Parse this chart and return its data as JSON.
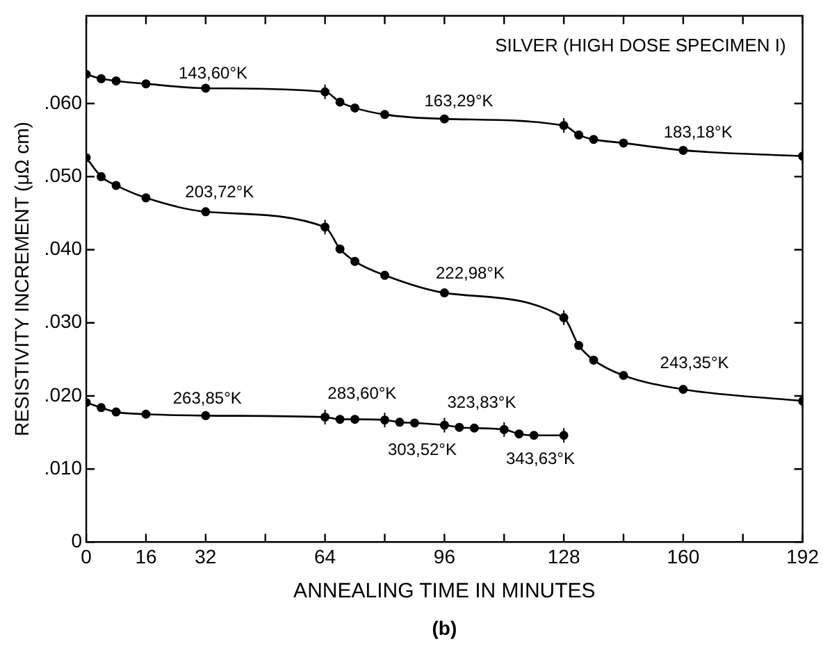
{
  "chart_data": {
    "type": "line",
    "xlabel": "ANNEALING TIME IN MINUTES",
    "ylabel": "RESISTIVITY INCREMENT (μΩ cm)",
    "xlim": [
      0,
      192
    ],
    "xticks": [
      0,
      16,
      32,
      {
        "value": 48,
        "label": null
      },
      64,
      {
        "value": 80,
        "label": null
      },
      96,
      {
        "value": 112,
        "label": null
      },
      128,
      {
        "value": 144,
        "label": null
      },
      160,
      {
        "value": 176,
        "label": null
      },
      192
    ],
    "ylim": [
      0,
      0.072
    ],
    "yticks": [
      0,
      {
        "value": 0.01,
        "label": ".010"
      },
      {
        "value": 0.02,
        "label": ".020"
      },
      {
        "value": 0.03,
        "label": ".030"
      },
      {
        "value": 0.04,
        "label": ".040"
      },
      {
        "value": 0.05,
        "label": ".050"
      },
      {
        "value": 0.06,
        "label": ".060"
      }
    ],
    "grid": false,
    "legend": false,
    "marker": "circle",
    "line_style": "solid",
    "series": [
      {
        "color": "#000000",
        "x": [
          0,
          4,
          8,
          16,
          32,
          64,
          68,
          72,
          80,
          96,
          128,
          132,
          136,
          144,
          160,
          192
        ],
        "values": [
          0.064,
          0.0634,
          0.0631,
          0.0627,
          0.0621,
          0.0616,
          0.0602,
          0.0594,
          0.0585,
          0.0579,
          0.057,
          0.0557,
          0.0551,
          0.0546,
          0.0536,
          0.0528
        ],
        "errors": [
          null,
          null,
          null,
          null,
          null,
          0.001,
          null,
          null,
          null,
          null,
          0.001,
          null,
          null,
          null,
          null,
          0.001
        ]
      },
      {
        "color": "#000000",
        "x": [
          0,
          4,
          8,
          16,
          32,
          64,
          68,
          72,
          80,
          96,
          128,
          132,
          136,
          144,
          160,
          192
        ],
        "values": [
          0.0526,
          0.05,
          0.0488,
          0.0471,
          0.0452,
          0.0431,
          0.0401,
          0.0384,
          0.0365,
          0.0341,
          0.0307,
          0.0269,
          0.0249,
          0.0228,
          0.0209,
          0.0193
        ],
        "errors": [
          null,
          null,
          null,
          null,
          null,
          0.001,
          null,
          null,
          null,
          null,
          0.001,
          null,
          null,
          null,
          null,
          0.001
        ]
      },
      {
        "color": "#000000",
        "x": [
          0,
          4,
          8,
          16,
          32,
          64,
          68,
          72,
          80,
          84,
          88,
          96,
          100,
          104,
          112,
          116,
          120,
          128
        ],
        "values": [
          0.0191,
          0.0184,
          0.0178,
          0.0175,
          0.0173,
          0.0171,
          0.0168,
          0.0168,
          0.0167,
          0.0164,
          0.0163,
          0.016,
          0.0157,
          0.0156,
          0.0154,
          0.0148,
          0.0146,
          0.0146
        ],
        "errors": [
          null,
          null,
          null,
          null,
          null,
          0.001,
          null,
          null,
          0.001,
          null,
          null,
          0.001,
          null,
          null,
          0.001,
          null,
          null,
          0.001
        ]
      }
    ],
    "annotations": [
      "SILVER (HIGH DOSE SPECIMEN I)",
      "(b)",
      "143,60°K",
      "163,29°K",
      "183,18°K",
      "203,72°K",
      "222,98°K",
      "243,35°K",
      "263,85°K",
      "283,60°K",
      "303,52°K",
      "323,83°K",
      "343,63°K"
    ]
  }
}
